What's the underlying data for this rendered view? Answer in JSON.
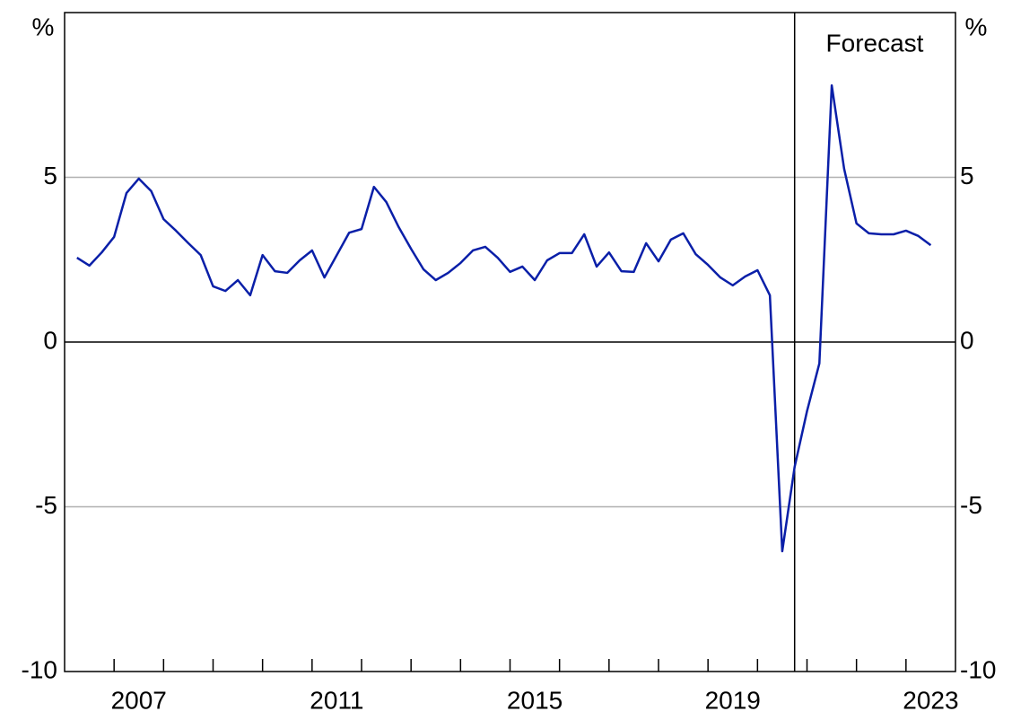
{
  "chart_data": {
    "type": "line",
    "ylabel": "%",
    "y2label": "%",
    "annotation": "Forecast",
    "forecast_start": 2020.75,
    "xlim": [
      2006,
      2024
    ],
    "xticks": [
      {
        "value": 2007.5,
        "label": "2007"
      },
      {
        "value": 2011.5,
        "label": "2011"
      },
      {
        "value": 2015.5,
        "label": "2015"
      },
      {
        "value": 2019.5,
        "label": "2019"
      },
      {
        "value": 2023.5,
        "label": "2023"
      }
    ],
    "xminorticks": [
      2007,
      2008,
      2009,
      2010,
      2011,
      2012,
      2013,
      2014,
      2015,
      2016,
      2017,
      2018,
      2019,
      2020,
      2021,
      2022,
      2023
    ],
    "ylim": [
      -10,
      10
    ],
    "yticks": [
      -10,
      -5,
      0,
      5
    ],
    "y2lim": [
      -10,
      10
    ],
    "y2ticks": [
      -10,
      -5,
      0,
      5
    ],
    "grid": true,
    "x": [
      2006.25,
      2006.5,
      2006.75,
      2007,
      2007.25,
      2007.5,
      2007.75,
      2008,
      2008.25,
      2008.5,
      2008.75,
      2009,
      2009.25,
      2009.5,
      2009.75,
      2010,
      2010.25,
      2010.5,
      2010.75,
      2011,
      2011.25,
      2011.5,
      2011.75,
      2012,
      2012.25,
      2012.5,
      2012.75,
      2013,
      2013.25,
      2013.5,
      2013.75,
      2014,
      2014.25,
      2014.5,
      2014.75,
      2015,
      2015.25,
      2015.5,
      2015.75,
      2016,
      2016.25,
      2016.5,
      2016.75,
      2017,
      2017.25,
      2017.5,
      2017.75,
      2018,
      2018.25,
      2018.5,
      2018.75,
      2019,
      2019.25,
      2019.5,
      2019.75,
      2020,
      2020.25,
      2020.5,
      2020.75,
      2021,
      2021.25,
      2021.5,
      2021.75,
      2022,
      2022.25,
      2022.5,
      2022.75,
      2023,
      2023.25,
      2023.5
    ],
    "series": [
      {
        "color": "#0a1fa8",
        "values": [
          2.56,
          2.32,
          2.72,
          3.19,
          4.52,
          4.96,
          4.58,
          3.73,
          3.38,
          3.0,
          2.64,
          1.69,
          1.55,
          1.88,
          1.42,
          2.64,
          2.15,
          2.1,
          2.48,
          2.78,
          1.96,
          2.64,
          3.32,
          3.43,
          4.71,
          4.25,
          3.49,
          2.83,
          2.21,
          1.88,
          2.1,
          2.4,
          2.78,
          2.89,
          2.56,
          2.13,
          2.29,
          1.88,
          2.48,
          2.7,
          2.7,
          3.27,
          2.29,
          2.72,
          2.15,
          2.13,
          3.0,
          2.45,
          3.11,
          3.3,
          2.67,
          2.34,
          1.96,
          1.72,
          1.99,
          2.18,
          1.42,
          -6.35,
          -3.79,
          -2.1,
          -0.65,
          7.79,
          5.26,
          3.6,
          3.3,
          3.27,
          3.27,
          3.38,
          3.22,
          2.94
        ]
      }
    ]
  }
}
